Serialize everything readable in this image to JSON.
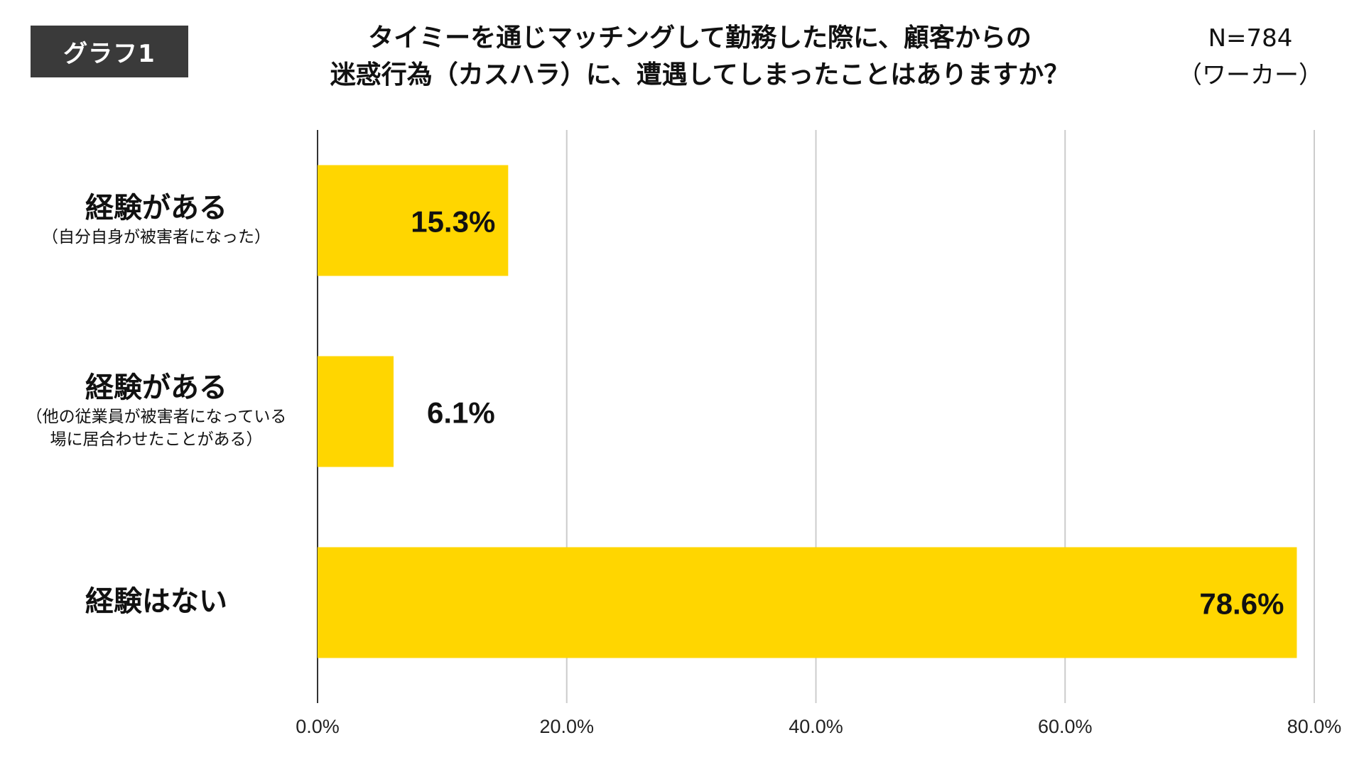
{
  "badge": "グラフ1",
  "title_line1": "タイミーを通じマッチングして勤務した際に、顧客からの",
  "title_line2": "迷惑行為（カスハラ）に、遭遇してしまったことはありますか？",
  "sample_size": "N=784",
  "sample_group": "（ワーカー）",
  "colors": {
    "bar": "#FFD600",
    "axis": "#333333",
    "grid": "#cccccc",
    "badge_bg": "#3a3a3a"
  },
  "chart_data": {
    "type": "bar",
    "orientation": "horizontal",
    "categories": [
      {
        "label": "経験がある",
        "sub": [
          "（自分自身が被害者になった）"
        ]
      },
      {
        "label": "経験がある",
        "sub": [
          "（他の従業員が被害者になっている",
          "場に居合わせたことがある）"
        ]
      },
      {
        "label": "経験はない",
        "sub": []
      }
    ],
    "values": [
      15.3,
      6.1,
      78.6
    ],
    "value_labels": [
      "15.3%",
      "6.1%",
      "78.6%"
    ],
    "xlim": [
      0,
      80
    ],
    "xticks": [
      "0.0%",
      "20.0%",
      "40.0%",
      "60.0%",
      "80.0%"
    ],
    "grid": true
  }
}
